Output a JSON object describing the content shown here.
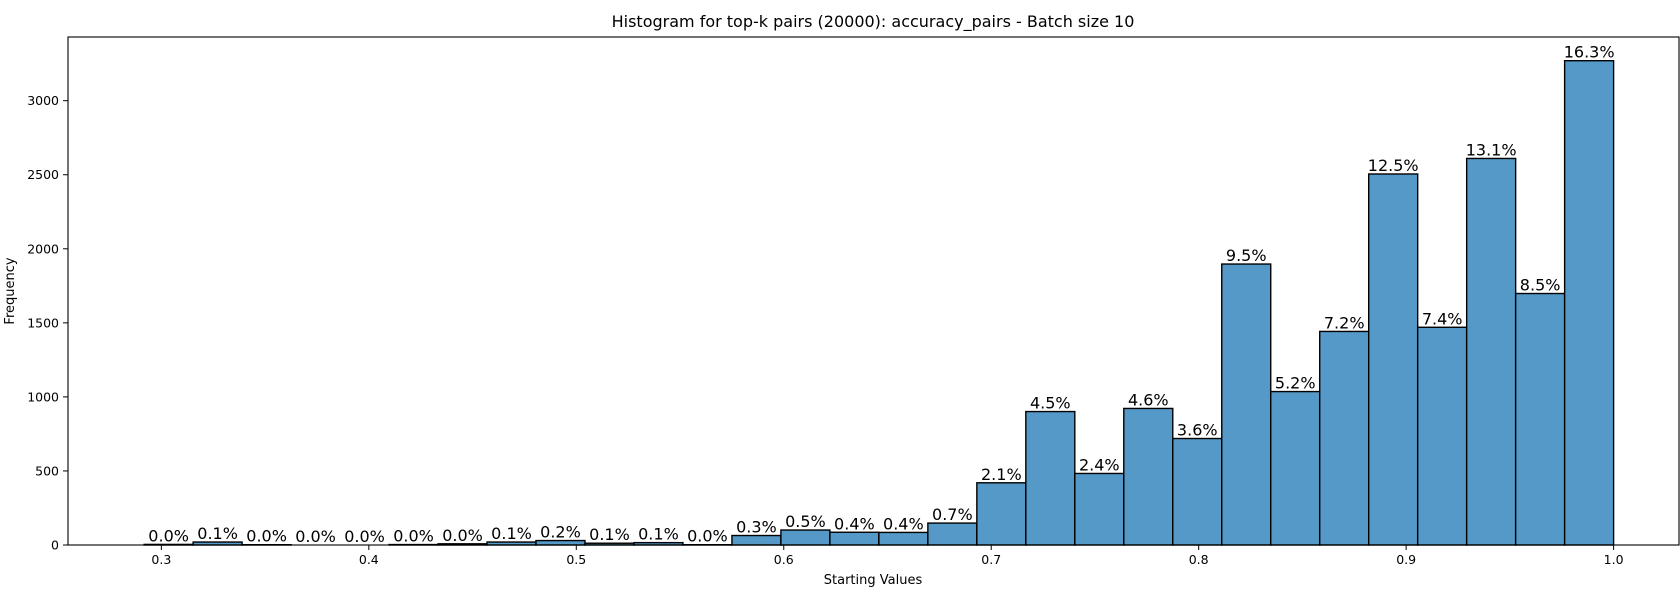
{
  "chart_data": {
    "type": "bar",
    "title": "Histogram for top-k pairs (20000): accuracy_pairs - Batch size 10",
    "xlabel": "Starting Values",
    "ylabel": "Frequency",
    "xlim": [
      0.255,
      1.032
    ],
    "ylim": [
      0,
      3430
    ],
    "xticks": [
      0.3,
      0.4,
      0.5,
      0.6,
      0.7,
      0.8,
      0.9,
      1.0
    ],
    "xtick_labels": [
      "0.3",
      "0.4",
      "0.5",
      "0.6",
      "0.7",
      "0.8",
      "0.9",
      "1.0"
    ],
    "yticks": [
      0,
      500,
      1000,
      1500,
      2000,
      2500,
      3000
    ],
    "ytick_labels": [
      "0",
      "500",
      "1000",
      "1500",
      "2000",
      "2500",
      "3000"
    ],
    "bin_start": 0.2917,
    "bin_width": 0.02361,
    "bar_color": "#5499c7",
    "grid": false,
    "values": [
      4,
      20,
      2,
      0,
      0,
      3,
      8,
      20,
      30,
      12,
      16,
      2,
      64,
      101,
      86,
      85,
      148,
      420,
      901,
      483,
      922,
      719,
      1897,
      1036,
      1442,
      2505,
      1470,
      2610,
      1698,
      3270
    ],
    "data_labels": [
      "0.0%",
      "0.1%",
      "0.0%",
      "0.0%",
      "0.0%",
      "0.0%",
      "0.0%",
      "0.1%",
      "0.2%",
      "0.1%",
      "0.1%",
      "0.0%",
      "0.3%",
      "0.5%",
      "0.4%",
      "0.4%",
      "0.7%",
      "2.1%",
      "4.5%",
      "2.4%",
      "4.6%",
      "3.6%",
      "9.5%",
      "5.2%",
      "7.2%",
      "12.5%",
      "7.4%",
      "13.1%",
      "8.5%",
      "16.3%"
    ]
  }
}
